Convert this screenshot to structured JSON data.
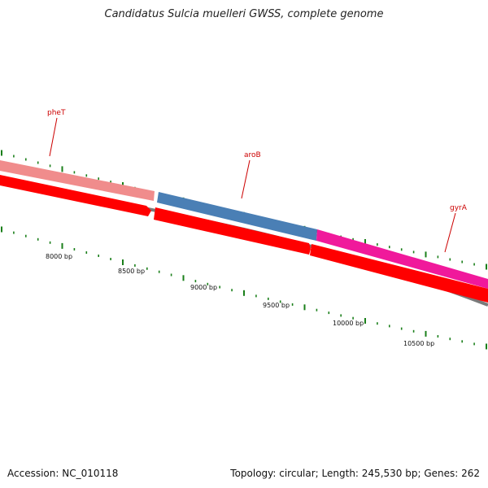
{
  "title": "Candidatus Sulcia muelleri GWSS, complete genome",
  "footer": {
    "accession": "Accession: NC_010118",
    "summary": "Topology: circular; Length: 245,530 bp; Genes: 262"
  },
  "colors": {
    "pheT": "#f08c8c",
    "aroB": "#4a7fb5",
    "gyrA": "#f0199b",
    "cds": "#ff0000",
    "backbone": "#7a7a7a",
    "ticks": "#1a7f1a",
    "gene_label": "#cc0000"
  },
  "genes": [
    {
      "name": "pheT",
      "label": "pheT"
    },
    {
      "name": "aroB",
      "label": "aroB"
    },
    {
      "name": "gyrA",
      "label": "gyrA"
    }
  ],
  "bp_labels": [
    "8000 bp",
    "8500 bp",
    "9000 bp",
    "9500 bp",
    "10000 bp",
    "10500 bp"
  ]
}
